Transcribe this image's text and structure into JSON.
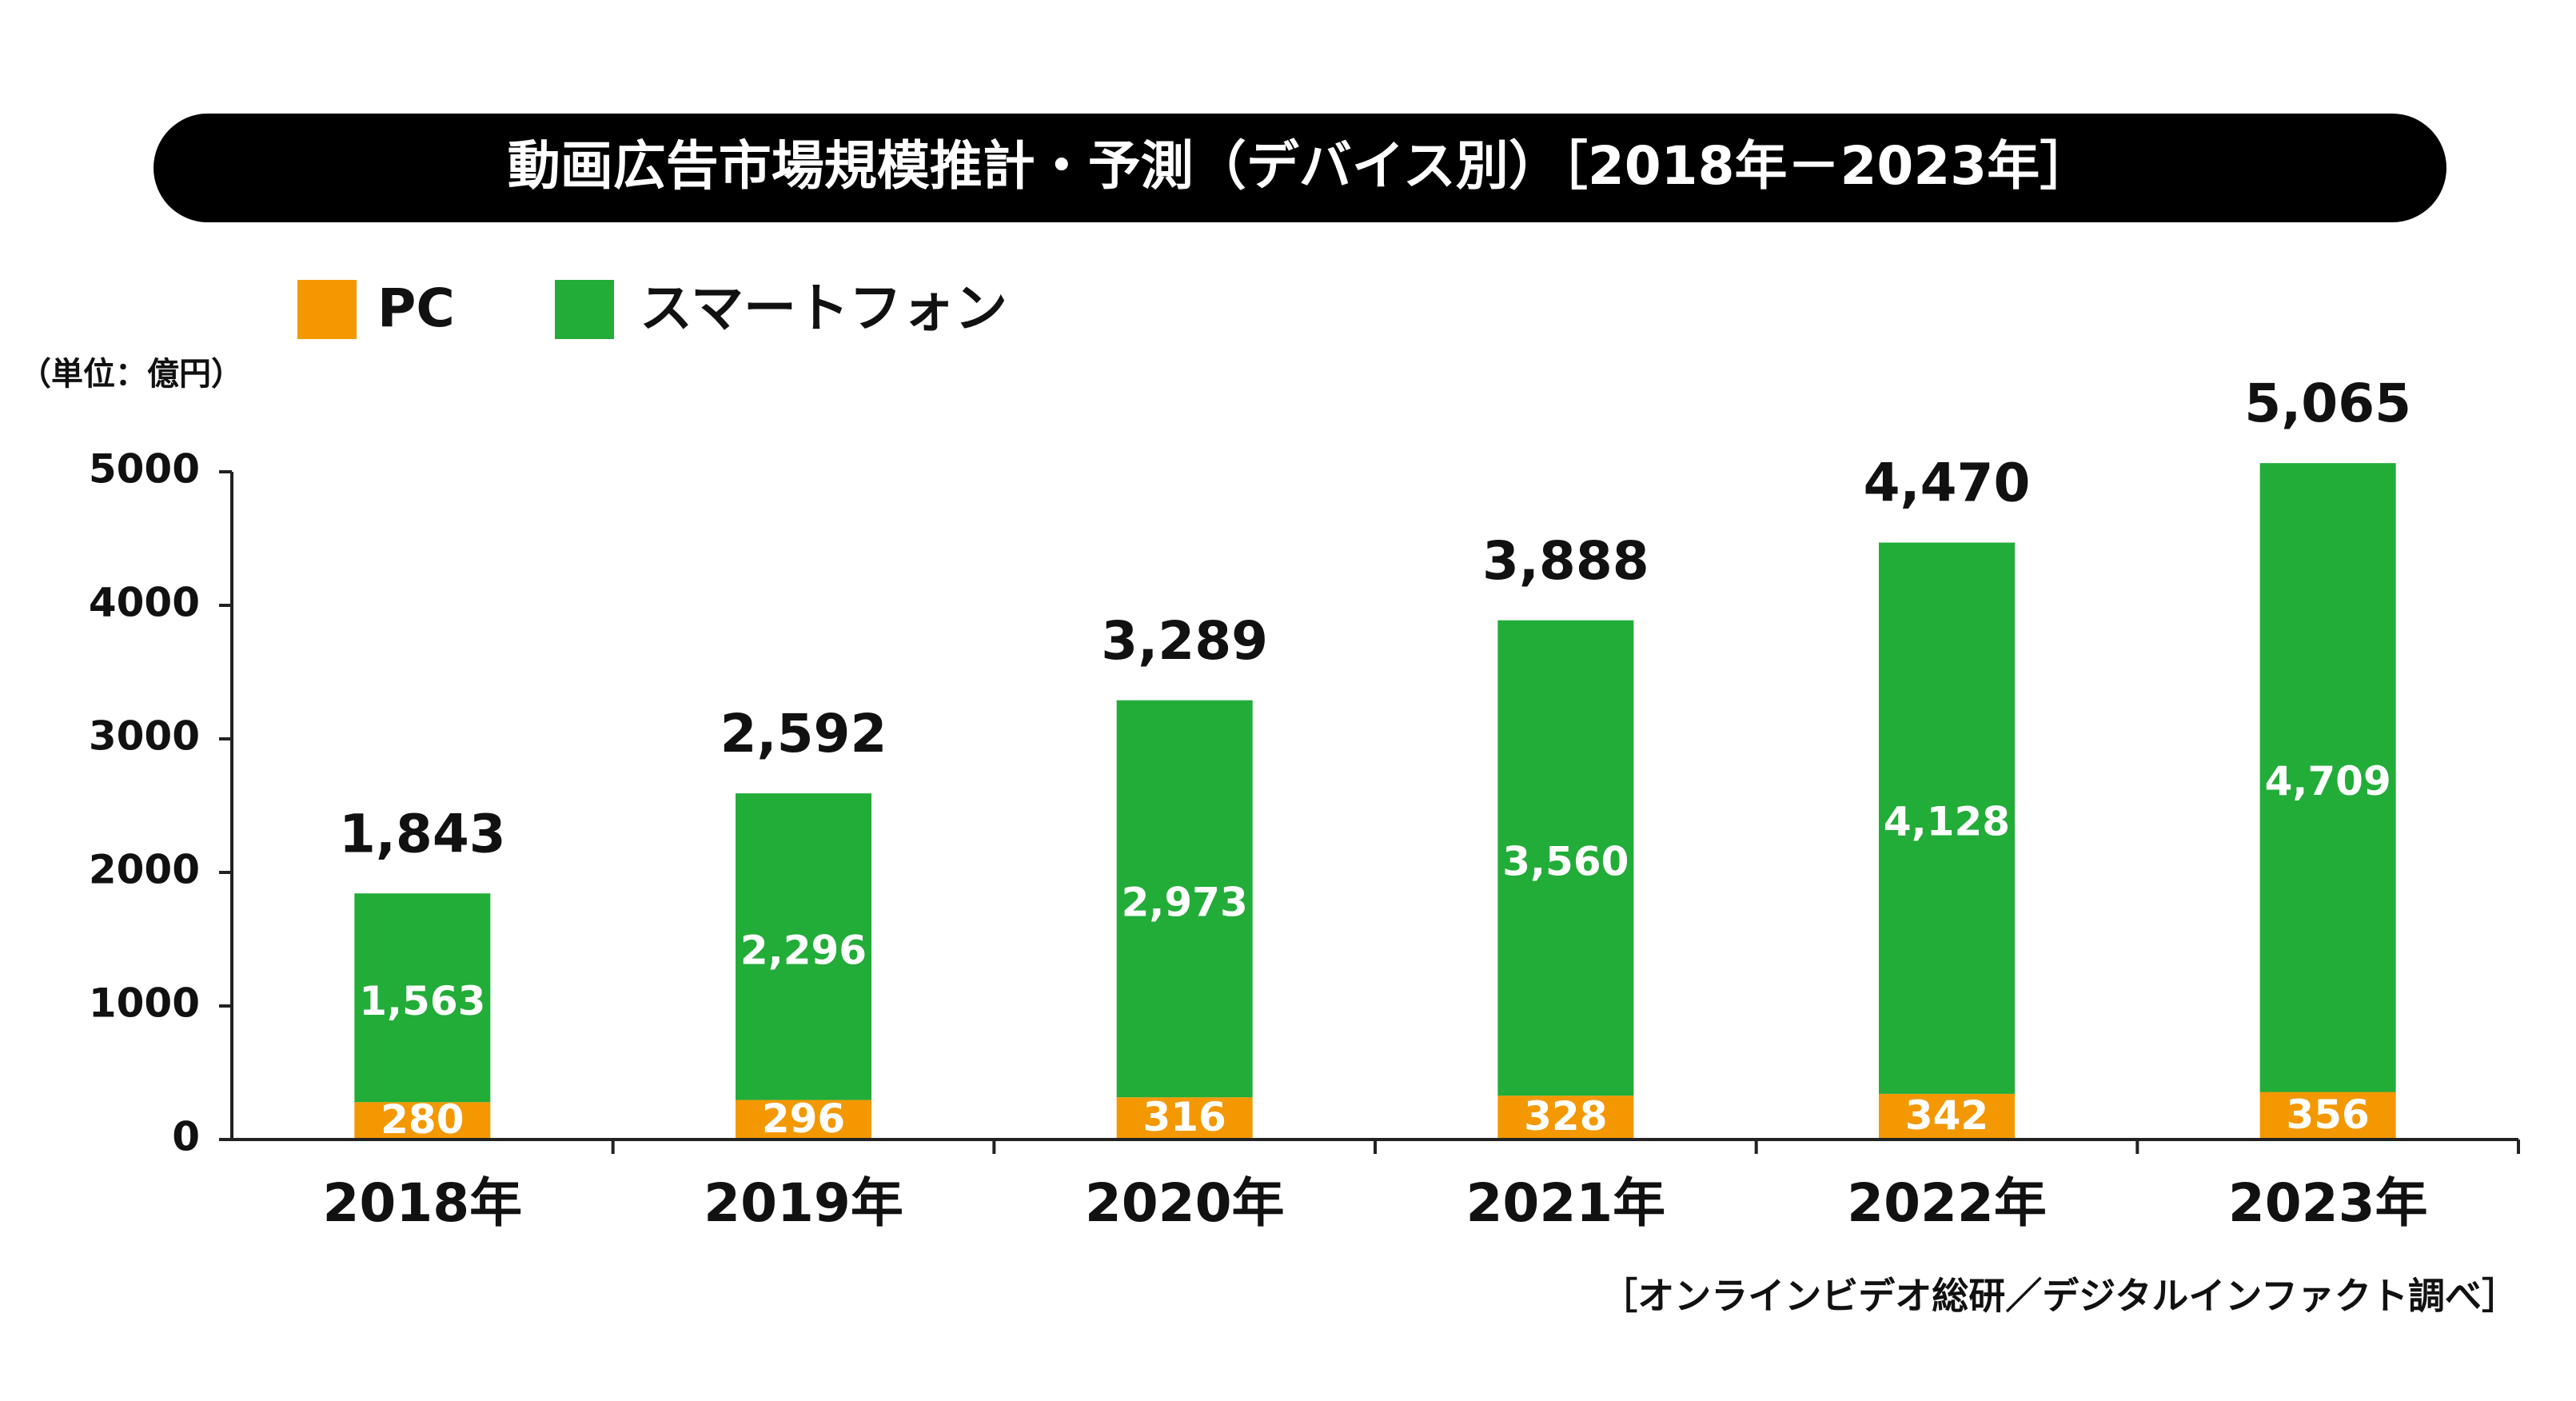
{
  "chart_data": {
    "type": "bar",
    "stacked": true,
    "title": "動画広告市場規模推計・予測（デバイス別）［2018年－2023年］",
    "unit_label": "（単位：億円）",
    "source": "［オンラインビデオ総研／デジタルインファクト調べ］",
    "categories": [
      "2018年",
      "2019年",
      "2020年",
      "2021年",
      "2022年",
      "2023年"
    ],
    "series": [
      {
        "name": "PC",
        "values": [
          280,
          296,
          316,
          328,
          342,
          356
        ],
        "labels": [
          "280",
          "296",
          "316",
          "328",
          "342",
          "356"
        ],
        "color": "#F39800"
      },
      {
        "name": "スマートフォン",
        "values": [
          1563,
          2296,
          2973,
          3560,
          4128,
          4709
        ],
        "labels": [
          "1,563",
          "2,296",
          "2,973",
          "3,560",
          "4,128",
          "4,709"
        ],
        "color": "#22AC38"
      }
    ],
    "totals": [
      "1,843",
      "2,592",
      "3,289",
      "3,888",
      "4,470",
      "5,065"
    ],
    "y_ticks": [
      "0",
      "1000",
      "2000",
      "3000",
      "4000",
      "5000"
    ],
    "y_tick_values": [
      0,
      1000,
      2000,
      3000,
      4000,
      5000
    ],
    "ylim": [
      0,
      5000
    ],
    "grid": false,
    "legend_position": "top-left"
  },
  "colors": {
    "title_bar": "#000000",
    "title_text": "#ffffff",
    "axis": "#222222",
    "text": "#111111",
    "bar_label": "#ffffff"
  }
}
